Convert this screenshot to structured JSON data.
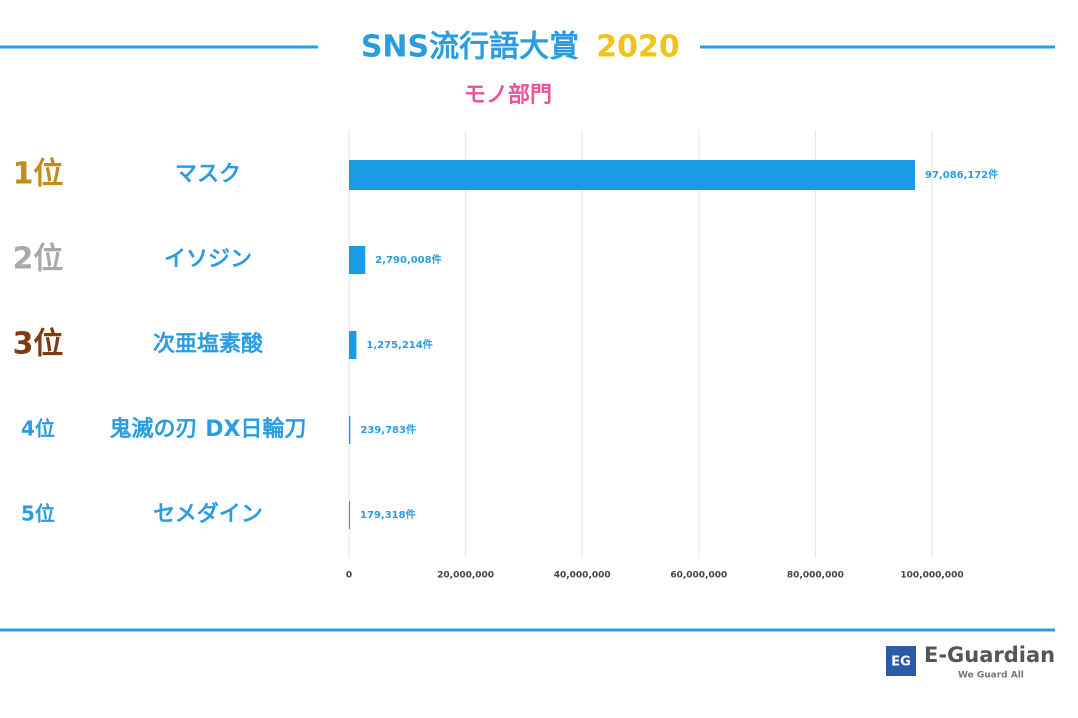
{
  "chart_data": {
    "type": "barh",
    "title": "SNS流行語大賞",
    "title_year": "2020",
    "subtitle": "モノ部門",
    "title_color": "#2a9de2",
    "year_color": "#f3c21a",
    "subtitle_color": "#e8559a",
    "ranks": [
      "1位",
      "2位",
      "3位",
      "4位",
      "5位"
    ],
    "rank_colors": [
      "#c48a1c",
      "#a9a9a9",
      "#7b3c14",
      "#2a9de2",
      "#2a9de2"
    ],
    "categories": [
      "マスク",
      "イソジン",
      "次亜塩素酸",
      "鬼滅の刃 DX日輪刀",
      "セメダイン"
    ],
    "values": [
      97086172,
      2790008,
      1275214,
      239783,
      179318
    ],
    "value_labels": [
      "97,086,172件",
      "2,790,008件",
      "1,275,214件",
      "239,783件",
      "179,318件"
    ],
    "color": "#1b9be6",
    "xlim": [
      0,
      100000000
    ],
    "xticks": [
      0,
      {
        "value": 20000000,
        "label": "20,000,000"
      },
      {
        "value": 40000000,
        "label": "40,000,000"
      },
      {
        "value": 60000000,
        "label": "60,000,000"
      },
      {
        "value": 80000000,
        "label": "80,000,000"
      },
      {
        "value": 100000000,
        "label": "100,000,000"
      }
    ],
    "grid": true,
    "logo": {
      "icon": "EG",
      "name": "E-Guardian",
      "tagline": "We Guard All"
    }
  }
}
